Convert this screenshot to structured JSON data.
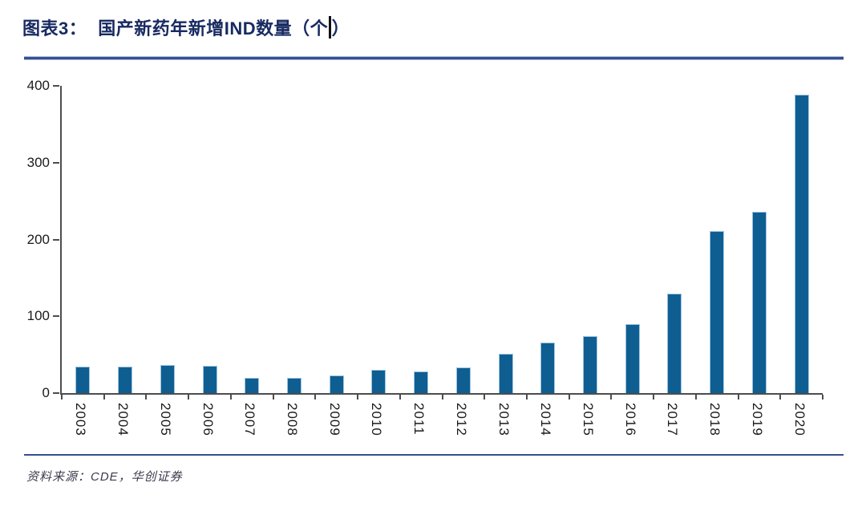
{
  "header": {
    "label": "图表3：",
    "title_main": "国产新药年新增IND数量（个",
    "title_close": "）"
  },
  "footer": {
    "source": "资料来源：CDE，华创证券"
  },
  "colors": {
    "bar": "#0f5e92",
    "title": "#182a61",
    "rule": "#35508e",
    "axis": "#4d4d4d",
    "tick_label": "#1a1a1a",
    "source_text": "#3b3b4e"
  },
  "chart_data": {
    "type": "bar",
    "title": "国产新药年新增IND数量（个）",
    "categories": [
      "2003",
      "2004",
      "2005",
      "2006",
      "2007",
      "2008",
      "2009",
      "2010",
      "2011",
      "2012",
      "2013",
      "2014",
      "2015",
      "2016",
      "2017",
      "2018",
      "2019",
      "2020"
    ],
    "values": [
      35,
      35,
      37,
      36,
      20,
      20,
      23,
      30,
      28,
      33,
      51,
      66,
      74,
      90,
      130,
      211,
      236,
      389
    ],
    "xlabel": "",
    "ylabel": "",
    "ylim": [
      0,
      400
    ],
    "yticks": [
      0,
      100,
      200,
      300,
      400
    ],
    "grid": false,
    "legend": false,
    "x_tick_label_rotation": 90
  }
}
